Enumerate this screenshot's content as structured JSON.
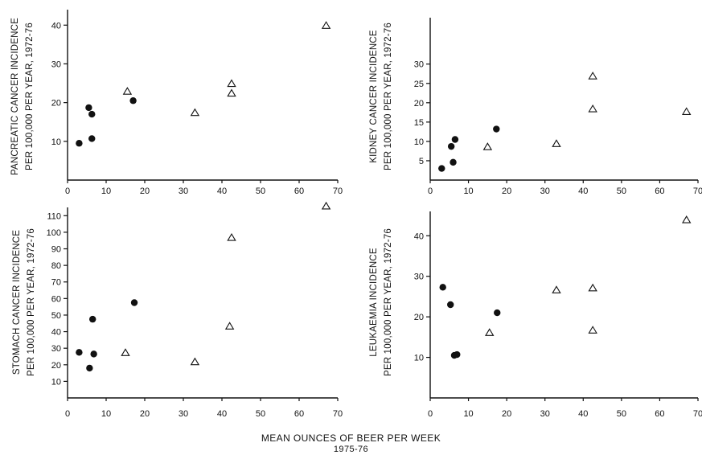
{
  "figure": {
    "xlabel_line1": "MEAN OUNCES OF BEER PER WEEK",
    "xlabel_line2": "1975-76"
  },
  "chart_data": [
    {
      "type": "scatter",
      "ylabel_line1": "PANCREATIC CANCER INCIDENCE",
      "ylabel_line2": "PER 100,000 PER YEAR, 1972-76",
      "xlim": [
        0,
        70
      ],
      "ylim": [
        0,
        44
      ],
      "xticks": [
        0,
        10,
        20,
        30,
        40,
        50,
        60,
        70
      ],
      "xtick_labels": [
        "0",
        "10",
        "20",
        "30",
        "40",
        "50",
        "60",
        "70"
      ],
      "yticks": [
        10,
        20,
        30,
        40
      ],
      "ytick_labels": [
        "10",
        "20",
        "30",
        "40"
      ],
      "series": [
        {
          "marker": "circle",
          "points": [
            [
              3,
              9.5
            ],
            [
              5.5,
              18.7
            ],
            [
              6.3,
              17
            ],
            [
              6.3,
              10.7
            ],
            [
              17,
              20.5
            ]
          ]
        },
        {
          "marker": "triangle",
          "points": [
            [
              15.5,
              23
            ],
            [
              33,
              17.5
            ],
            [
              42.5,
              25
            ],
            [
              42.5,
              22.5
            ],
            [
              67,
              40
            ]
          ]
        }
      ]
    },
    {
      "type": "scatter",
      "ylabel_line1": "KIDNEY CANCER INCIDENCE",
      "ylabel_line2": "PER 100,000 PER YEAR, 1972-76",
      "xlim": [
        0,
        70
      ],
      "ylim": [
        0,
        42
      ],
      "xticks": [
        0,
        10,
        20,
        30,
        40,
        50,
        60,
        70
      ],
      "xtick_labels": [
        "0",
        "10",
        "20",
        "30",
        "40",
        "50",
        "60",
        "70"
      ],
      "yticks": [
        5,
        10,
        15,
        20,
        25,
        30
      ],
      "ytick_labels": [
        "5",
        "10",
        "15",
        "20",
        "25",
        "30"
      ],
      "series": [
        {
          "marker": "circle",
          "points": [
            [
              3,
              3
            ],
            [
              5.5,
              8.7
            ],
            [
              6,
              4.6
            ],
            [
              6.5,
              10.5
            ],
            [
              17.3,
              13.2
            ]
          ]
        },
        {
          "marker": "triangle",
          "points": [
            [
              15,
              8.7
            ],
            [
              33,
              9.5
            ],
            [
              42.5,
              27
            ],
            [
              42.5,
              18.5
            ],
            [
              67,
              17.8
            ]
          ]
        }
      ]
    },
    {
      "type": "scatter",
      "ylabel_line1": "STOMACH CANCER INCIDENCE",
      "ylabel_line2": "PER 100,000 PER YEAR, 1972-76",
      "xlim": [
        0,
        70
      ],
      "ylim": [
        0,
        115
      ],
      "xticks": [
        0,
        10,
        20,
        30,
        40,
        50,
        60,
        70
      ],
      "xtick_labels": [
        "0",
        "10",
        "20",
        "30",
        "40",
        "50",
        "60",
        "70"
      ],
      "yticks": [
        10,
        20,
        30,
        40,
        50,
        60,
        70,
        80,
        90,
        100,
        110
      ],
      "ytick_labels": [
        "10",
        "20",
        "30",
        "40",
        "50",
        "60",
        "70",
        "80",
        "90",
        "100",
        "110"
      ],
      "series": [
        {
          "marker": "circle",
          "points": [
            [
              3,
              27.5
            ],
            [
              5.7,
              18
            ],
            [
              6.5,
              47.5
            ],
            [
              6.8,
              26.5
            ],
            [
              17.3,
              57.5
            ]
          ]
        },
        {
          "marker": "triangle",
          "points": [
            [
              15,
              27.5
            ],
            [
              33,
              22
            ],
            [
              42,
              43.5
            ],
            [
              42.5,
              97
            ],
            [
              67,
              116
            ]
          ]
        }
      ]
    },
    {
      "type": "scatter",
      "ylabel_line1": "LEUKAEMIA INCIDENCE",
      "ylabel_line2": "PER 100,000 PER YEAR, 1972-76",
      "xlim": [
        0,
        70
      ],
      "ylim": [
        0,
        46
      ],
      "xticks": [
        0,
        10,
        20,
        30,
        40,
        50,
        60,
        70
      ],
      "xtick_labels": [
        "0",
        "10",
        "20",
        "30",
        "40",
        "50",
        "60",
        "70"
      ],
      "yticks": [
        10,
        20,
        30,
        40
      ],
      "ytick_labels": [
        "10",
        "20",
        "30",
        "40"
      ],
      "series": [
        {
          "marker": "circle",
          "points": [
            [
              3.3,
              27.3
            ],
            [
              5.3,
              23
            ],
            [
              6.3,
              10.5
            ],
            [
              7,
              10.7
            ],
            [
              17.5,
              21
            ]
          ]
        },
        {
          "marker": "triangle",
          "points": [
            [
              15.5,
              16.2
            ],
            [
              33,
              26.7
            ],
            [
              42.5,
              27.2
            ],
            [
              42.5,
              16.8
            ],
            [
              67,
              44
            ]
          ]
        }
      ]
    }
  ]
}
